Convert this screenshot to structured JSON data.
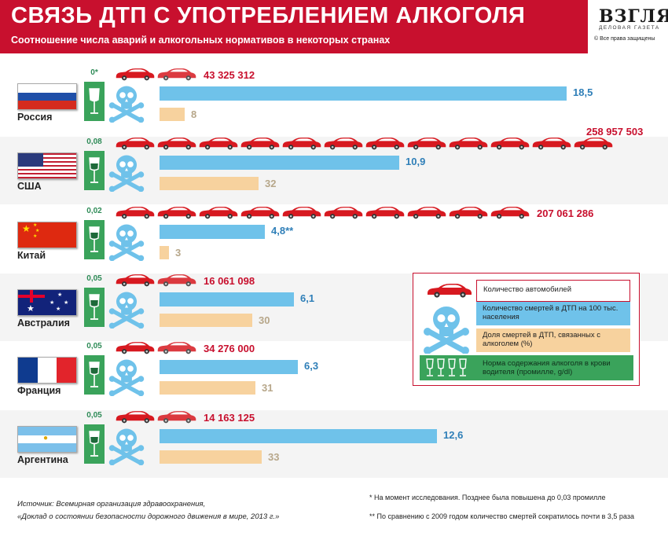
{
  "header": {
    "title": "СВЯЗЬ ДТП С УПОТРЕБЛЕНИЕМ АЛКОГОЛЯ",
    "subtitle": "Соотношение числа аварий и алкогольных нормативов в некоторых странах",
    "logo": "ВЗГЛЯД",
    "logo_sub": "ДЕЛОВАЯ ГАЗЕТА",
    "copyright": "© Все права защищены"
  },
  "colors": {
    "red": "#c8102e",
    "blue": "#6fc2ea",
    "tan": "#f7d29e",
    "green": "#3aa35b"
  },
  "legend": {
    "cars": "Количество автомобилей",
    "deaths": "Количество смертей в ДТП на 100 тыс. населения",
    "alcohol_share": "Доля смертей в ДТП, связанных с алкоголем (%)",
    "norm": "Норма содержания алкоголя в крови водителя (промилле, g/dl)"
  },
  "chart_data": {
    "type": "bar",
    "categories": [
      "Россия",
      "США",
      "Китай",
      "Австралия",
      "Франция",
      "Аргентина"
    ],
    "series": [
      {
        "name": "Количество смертей в ДТП на 100 тыс. населения",
        "values": [
          18.5,
          10.9,
          4.8,
          6.1,
          6.3,
          12.6
        ],
        "labels": [
          "18,5",
          "10,9",
          "4,8**",
          "6,1",
          "6,3",
          "12,6"
        ]
      },
      {
        "name": "Доля смертей в ДТП, связанных с алкоголем (%)",
        "values": [
          8,
          32,
          3,
          30,
          31,
          33
        ],
        "labels": [
          "8",
          "32",
          "3",
          "30",
          "31",
          "33"
        ]
      },
      {
        "name": "Количество автомобилей",
        "values": [
          43325312,
          258957503,
          207061286,
          16061098,
          34276000,
          14163125
        ],
        "labels": [
          "43 325 312",
          "258 957 503",
          "207 061 286",
          "16 061 098",
          "34 276 000",
          "14 163 125"
        ]
      },
      {
        "name": "Норма содержания алкоголя в крови водителя (промилле, g/dl)",
        "values": [
          0,
          0.08,
          0.02,
          0.05,
          0.05,
          0.05
        ],
        "labels": [
          "0*",
          "0,08",
          "0,02",
          "0,05",
          "0,05",
          "0,05"
        ]
      }
    ]
  },
  "footnotes": {
    "star1": "*   На момент исследования. Позднее была повышена до 0,03 промилле",
    "star2": "**  По сравнению с 2009 годом количество смертей сократилось почти в 3,5 раза"
  },
  "source": {
    "line1": "Источник: Всемирная организация здравоохранения,",
    "line2": "«Доклад о состоянии безопасности дорожного движения в мире, 2013 г.»"
  }
}
